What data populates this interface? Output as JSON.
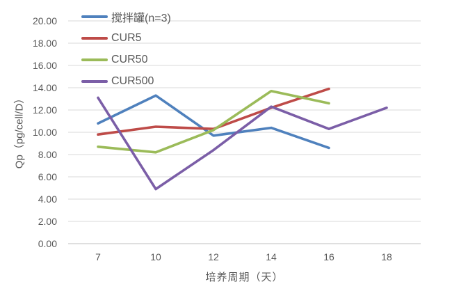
{
  "chart_data": {
    "type": "line",
    "title": "",
    "xlabel": "培养周期（天）",
    "ylabel": "Qp（pg/cell/D）",
    "categories": [
      "7",
      "10",
      "12",
      "14",
      "16",
      "18"
    ],
    "series": [
      {
        "name": "搅拌罐(n=3)",
        "color": "#4F81BD",
        "values": [
          10.8,
          13.3,
          9.7,
          10.4,
          8.6,
          null
        ]
      },
      {
        "name": "CUR5",
        "color": "#BE4B48",
        "values": [
          9.8,
          10.5,
          10.3,
          12.2,
          13.9,
          null
        ]
      },
      {
        "name": "CUR50",
        "color": "#9BBB59",
        "values": [
          8.7,
          8.2,
          10.2,
          13.7,
          12.6,
          null
        ]
      },
      {
        "name": "CUR500",
        "color": "#7B5EA7",
        "values": [
          13.1,
          4.9,
          8.4,
          12.3,
          10.3,
          12.2
        ]
      }
    ],
    "ylim": [
      0,
      20
    ],
    "ytick_step": 2,
    "ytick_format_decimals": 2,
    "grid": "horizontal",
    "legend_position": "top-left",
    "colors": {
      "gridline": "#D9D9D9",
      "axis_line": "#BFBFBF",
      "text": "#595959",
      "background": "#FFFFFF"
    }
  }
}
